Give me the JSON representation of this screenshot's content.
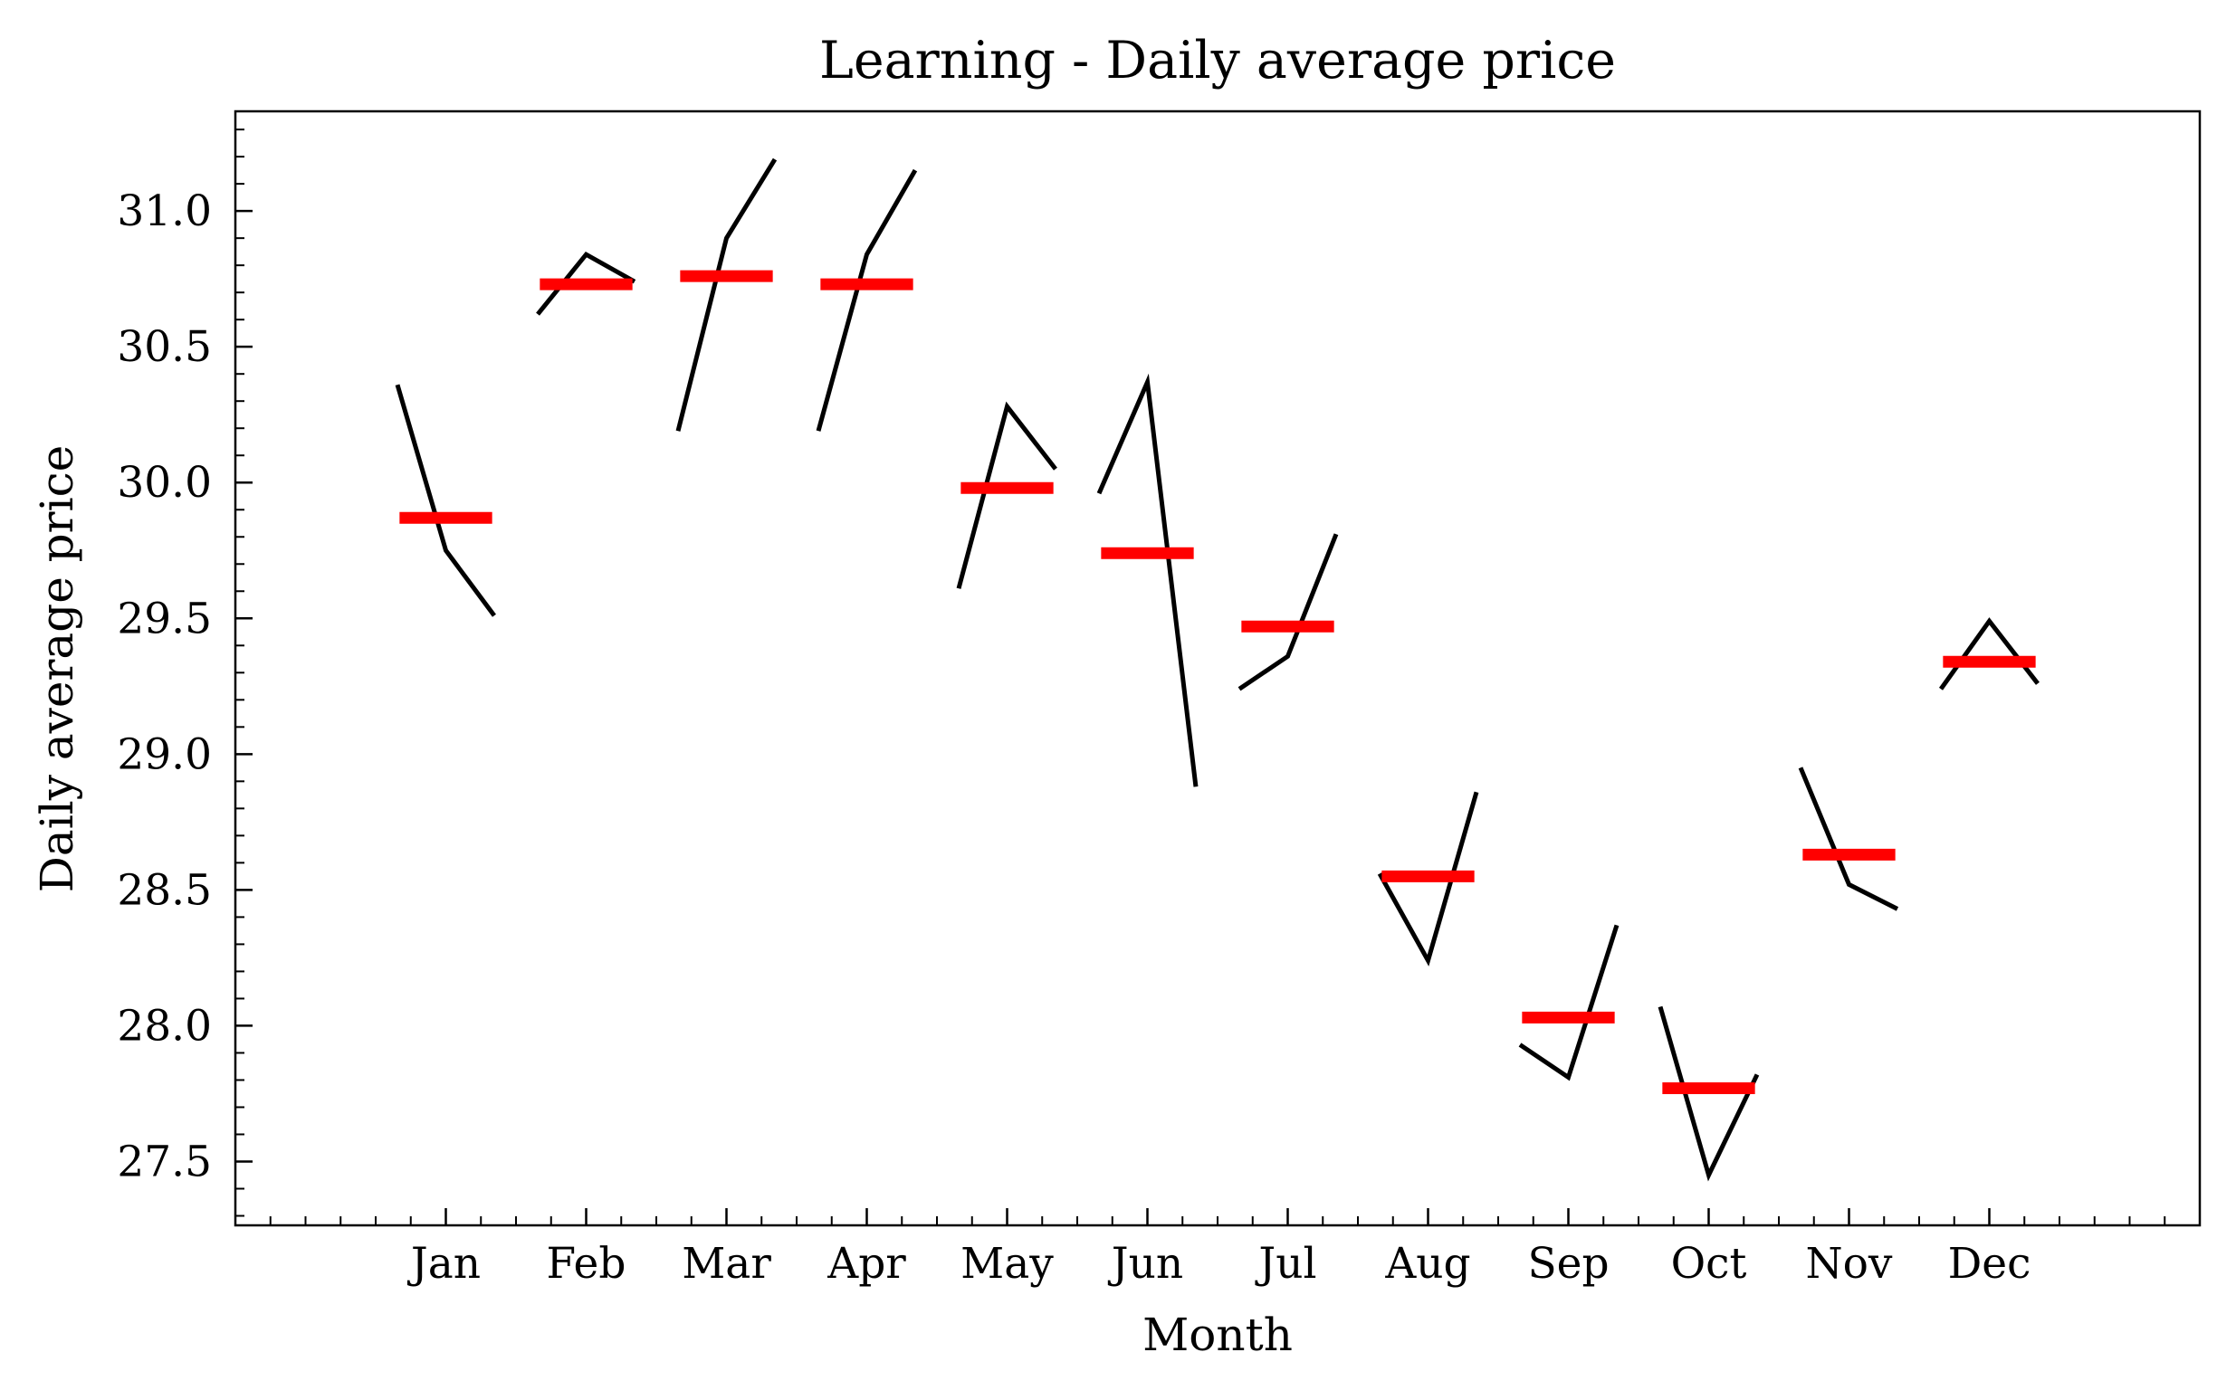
{
  "chart_data": {
    "type": "seasonal",
    "title": "Learning - Daily average price",
    "x_label": "Month",
    "y_label": "Daily average price",
    "categories": [
      "Jan",
      "Feb",
      "Mar",
      "Apr",
      "May",
      "Jun",
      "Jul",
      "Aug",
      "Sep",
      "Oct",
      "Nov",
      "Dec"
    ],
    "values": [
      [
        30.36,
        29.75,
        29.51
      ],
      [
        30.62,
        30.84,
        30.74
      ],
      [
        30.19,
        30.9,
        31.19
      ],
      [
        30.19,
        30.84,
        31.15
      ],
      [
        29.61,
        30.28,
        30.05
      ],
      [
        29.96,
        30.37,
        28.88
      ],
      [
        29.24,
        29.36,
        29.81
      ],
      [
        28.56,
        28.24,
        28.86
      ],
      [
        27.93,
        27.81,
        28.37
      ],
      [
        28.07,
        27.45,
        27.82
      ],
      [
        28.95,
        28.52,
        28.43
      ],
      [
        29.24,
        29.49,
        29.26
      ]
    ],
    "means": [
      29.87,
      30.73,
      30.76,
      30.73,
      29.98,
      29.74,
      29.47,
      28.55,
      28.03,
      27.77,
      28.63,
      29.34
    ],
    "line_color": "#000000",
    "mean_color": "#ff0000",
    "xlim": [
      -1.5,
      12.5
    ],
    "ylim": [
      27.265,
      31.367
    ],
    "yticks": [
      27.5,
      {
        "value": 28,
        "label": "28.0"
      },
      28.5,
      {
        "value": 29,
        "label": "29.0"
      },
      29.5,
      {
        "value": 30,
        "label": "30.0"
      },
      30.5,
      {
        "value": 31,
        "label": "31.0"
      }
    ]
  }
}
